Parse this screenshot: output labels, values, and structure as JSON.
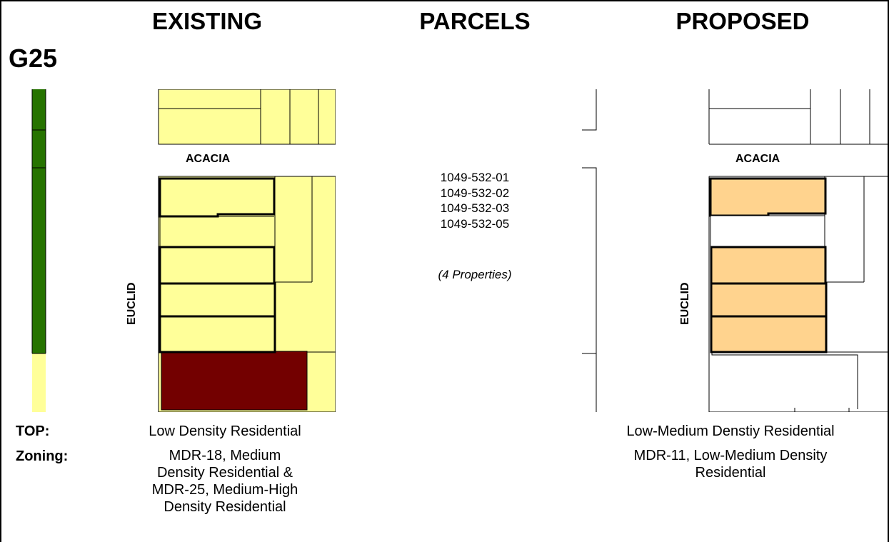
{
  "columns": {
    "existing": "EXISTING",
    "parcels": "PARCELS",
    "proposed": "PROPOSED"
  },
  "case_id": "G25",
  "parcels": {
    "apns": [
      "1049-532-01",
      "1049-532-02",
      "1049-532-03",
      "1049-532-05"
    ],
    "count_label": "(4 Properties)"
  },
  "map": {
    "street_top": "ACACIA",
    "street_side": "EUCLID",
    "colors": {
      "low_density_residential": "#ffff99",
      "low_medium_density_residential": "#ffd38e",
      "park_open_space": "#267300",
      "commercial": "#730000",
      "parcel_line": "#000000",
      "background": "#ffffff"
    }
  },
  "labels": {
    "top": "TOP:",
    "zoning": "Zoning:"
  },
  "existing": {
    "top": "Low Density Residential",
    "zoning_lines": [
      "MDR-18, Medium",
      "Density Residential &",
      "MDR-25, Medium-High",
      "Density Residential"
    ]
  },
  "proposed": {
    "top": "Low-Medium Denstiy Residential",
    "zoning_lines": [
      "MDR-11, Low-Medium Density",
      "Residential"
    ]
  }
}
